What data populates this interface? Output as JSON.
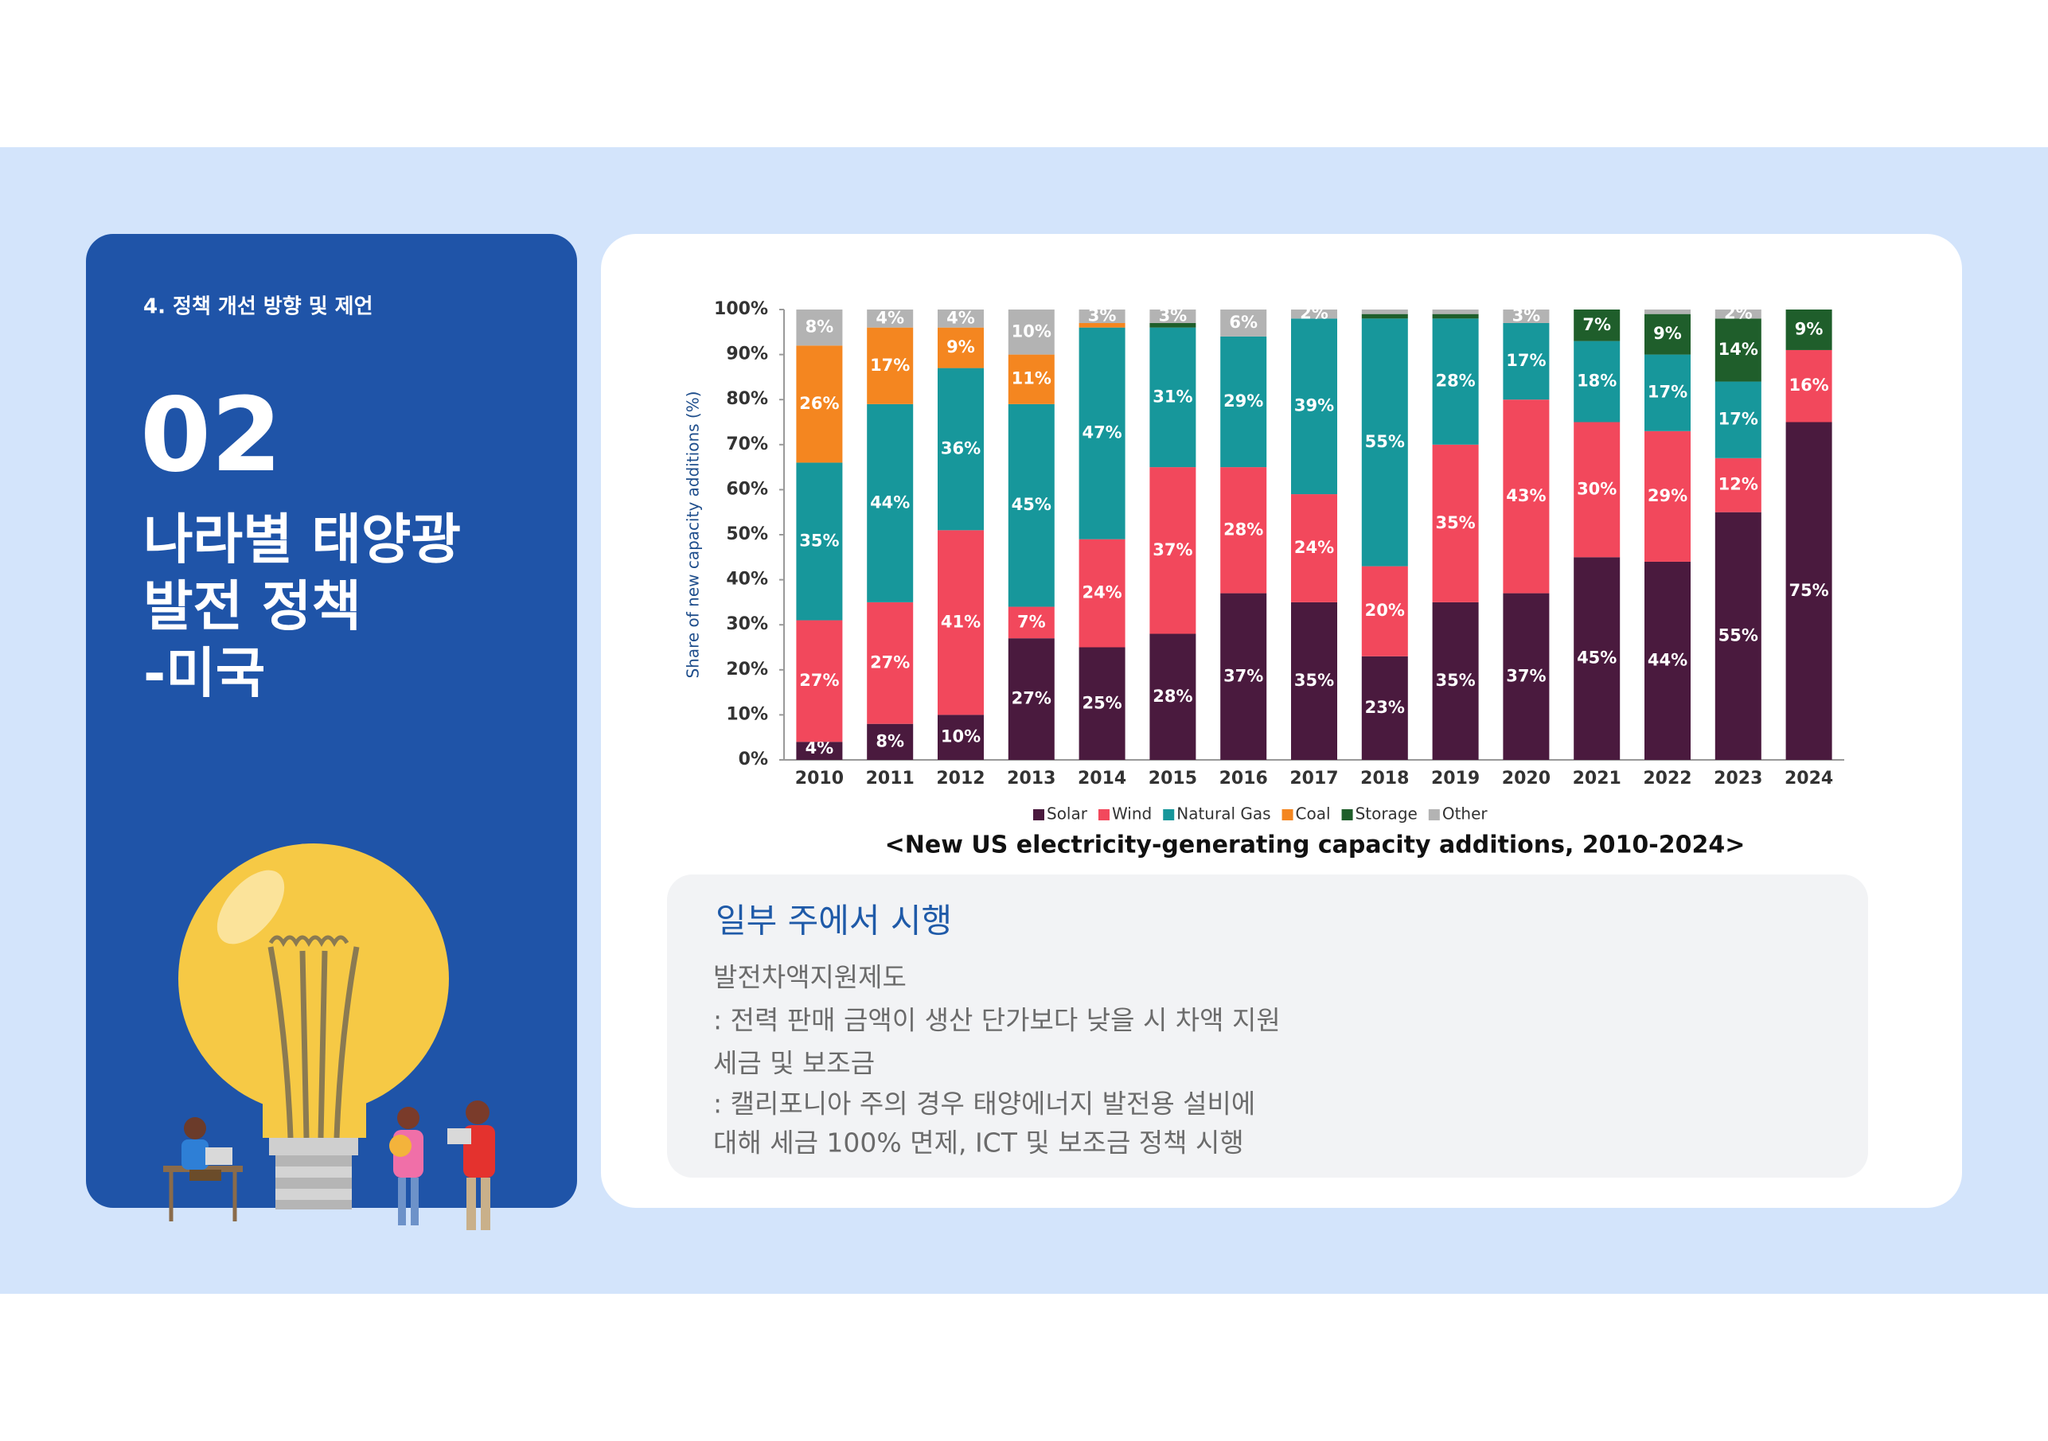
{
  "header": {
    "section": "4. 정책 개선 방향 및 제언"
  },
  "panel": {
    "number": "02",
    "title_lines": [
      "나라별 태양광",
      "발전 정책",
      "-미국"
    ]
  },
  "chart_data": {
    "type": "bar",
    "stacked": true,
    "title": "<New US electricity-generating capacity additions, 2010-2024>",
    "ylabel": "Share of new capacity additions (%)",
    "categories": [
      "2010",
      "2011",
      "2012",
      "2013",
      "2014",
      "2015",
      "2016",
      "2017",
      "2018",
      "2019",
      "2020",
      "2021",
      "2022",
      "2023",
      "2024"
    ],
    "series": [
      {
        "name": "Solar",
        "color": "#4a1a3e",
        "values": [
          4,
          8,
          10,
          27,
          25,
          28,
          37,
          35,
          23,
          35,
          37,
          45,
          44,
          55,
          75
        ],
        "value_labels": [
          "4%",
          "8%",
          "10%",
          "27%",
          "25%",
          "28%",
          "37%",
          "35%",
          "23%",
          "35%",
          "37%",
          "45%",
          "44%",
          "55%",
          "75%"
        ]
      },
      {
        "name": "Wind",
        "color": "#f2485c",
        "values": [
          27,
          27,
          41,
          7,
          24,
          37,
          28,
          24,
          20,
          35,
          43,
          30,
          29,
          12,
          16
        ],
        "value_labels": [
          "27%",
          "27%",
          "41%",
          "7%",
          "24%",
          "37%",
          "28%",
          "24%",
          "20%",
          "35%",
          "43%",
          "30%",
          "29%",
          "12%",
          "16%"
        ]
      },
      {
        "name": "Natural Gas",
        "color": "#17979b",
        "values": [
          35,
          44,
          36,
          45,
          47,
          31,
          29,
          39,
          55,
          28,
          17,
          18,
          17,
          17,
          0
        ],
        "value_labels": [
          "35%",
          "44%",
          "36%",
          "45%",
          "47%",
          "31%",
          "29%",
          "39%",
          "55%",
          "28%",
          "17%",
          "18%",
          "17%",
          "17%",
          null
        ]
      },
      {
        "name": "Coal",
        "color": "#f48620",
        "values": [
          26,
          17,
          9,
          11,
          1,
          0,
          0,
          0,
          0,
          0,
          0,
          0,
          0,
          0,
          0
        ],
        "value_labels": [
          "26%",
          "17%",
          "9%",
          "11%",
          null,
          null,
          null,
          null,
          null,
          null,
          null,
          null,
          null,
          null,
          null
        ]
      },
      {
        "name": "Storage",
        "color": "#1f5e2b",
        "values": [
          0,
          0,
          0,
          0,
          0,
          1,
          0,
          0,
          1,
          1,
          0,
          7,
          9,
          14,
          9
        ],
        "value_labels": [
          null,
          null,
          null,
          null,
          null,
          null,
          null,
          null,
          null,
          null,
          null,
          "7%",
          "9%",
          "14%",
          "9%"
        ]
      },
      {
        "name": "Other",
        "color": "#b3b3b3",
        "values": [
          8,
          4,
          4,
          10,
          3,
          3,
          6,
          2,
          1,
          1,
          3,
          0,
          1,
          2,
          0
        ],
        "value_labels": [
          "8%",
          "4%",
          "4%",
          "10%",
          "3%",
          "3%",
          "6%",
          "2%",
          null,
          null,
          "3%",
          null,
          null,
          "2%",
          null
        ]
      }
    ],
    "ylim": [
      0,
      100
    ],
    "yticks": [
      {
        "value": 0,
        "label": "0%"
      },
      {
        "value": 10,
        "label": "10%"
      },
      {
        "value": 20,
        "label": "20%"
      },
      {
        "value": 30,
        "label": "30%"
      },
      {
        "value": 40,
        "label": "40%"
      },
      {
        "value": 50,
        "label": "50%"
      },
      {
        "value": 60,
        "label": "60%"
      },
      {
        "value": 70,
        "label": "70%"
      },
      {
        "value": 80,
        "label": "80%"
      },
      {
        "value": 90,
        "label": "90%"
      },
      {
        "value": 100,
        "label": "100%"
      }
    ],
    "grid": false,
    "legend": "bottom"
  },
  "info": {
    "heading": "일부 주에서 시행",
    "lines": [
      "발전차액지원제도",
      ": 전력 판매 금액이 생산 단가보다 낮을 시 차액 지원",
      "세금 및 보조금",
      ": 캘리포니아 주의 경우 태양에너지 발전용 설비에",
      "대해 세금 100% 면제, ICT 및 보조금 정책 시행"
    ]
  }
}
